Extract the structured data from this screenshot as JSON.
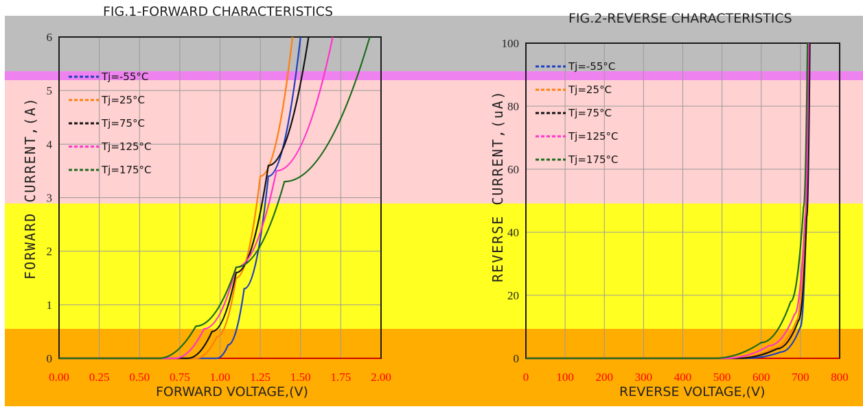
{
  "bands": {
    "gray": "#bdbdbd",
    "violet": "#ee82ee",
    "pink": "#ffd1d1",
    "yellow": "#ffff22",
    "orange": "#ffad00"
  },
  "chart_data": [
    {
      "type": "line",
      "title": "FIG.1-FORWARD CHARACTERISTICS",
      "xlabel": "FORWARD VOLTAGE,(V)",
      "ylabel": "FORWARD CURRENT,(A)",
      "xlim": [
        0,
        2
      ],
      "ylim": [
        0,
        6
      ],
      "x_ticks": [
        "0.00",
        "0.25",
        "0.50",
        "0.75",
        "1.00",
        "1.25",
        "1.50",
        "1.75",
        "2.00"
      ],
      "y_ticks": [
        "0",
        "1",
        "2",
        "3",
        "4",
        "5",
        "6"
      ],
      "grid": true,
      "legend_position": "top-left",
      "series": [
        {
          "name": "Tj=-55°C",
          "color": "#1f3fbf",
          "points": [
            [
              0,
              0
            ],
            [
              0.98,
              0
            ],
            [
              1.05,
              0.25
            ],
            [
              1.15,
              1.3
            ],
            [
              1.3,
              3.4
            ],
            [
              1.5,
              6
            ]
          ]
        },
        {
          "name": "Tj=25°C",
          "color": "#ff7f0e",
          "points": [
            [
              0,
              0
            ],
            [
              0.85,
              0
            ],
            [
              0.98,
              0.4
            ],
            [
              1.1,
              1.5
            ],
            [
              1.25,
              3.4
            ],
            [
              1.45,
              6
            ]
          ]
        },
        {
          "name": "Tj=75°C",
          "color": "#111111",
          "points": [
            [
              0,
              0
            ],
            [
              0.8,
              0
            ],
            [
              0.95,
              0.5
            ],
            [
              1.1,
              1.6
            ],
            [
              1.3,
              3.6
            ],
            [
              1.55,
              6
            ]
          ]
        },
        {
          "name": "Tj=125°C",
          "color": "#ff33cc",
          "points": [
            [
              0,
              0
            ],
            [
              0.72,
              0
            ],
            [
              0.9,
              0.55
            ],
            [
              1.1,
              1.7
            ],
            [
              1.35,
              3.5
            ],
            [
              1.7,
              6
            ]
          ]
        },
        {
          "name": "Tj=175°C",
          "color": "#1b6b1b",
          "points": [
            [
              0,
              0
            ],
            [
              0.62,
              0
            ],
            [
              0.85,
              0.6
            ],
            [
              1.1,
              1.7
            ],
            [
              1.4,
              3.3
            ],
            [
              1.93,
              6
            ]
          ]
        }
      ]
    },
    {
      "type": "line",
      "title": "FIG.2-REVERSE CHARACTERISTICS",
      "xlabel": "REVERSE VOLTAGE,(V)",
      "ylabel": "REVERSE CURRENT,(uA)",
      "xlim": [
        0,
        800
      ],
      "ylim": [
        0,
        100
      ],
      "x_ticks": [
        "0",
        "100",
        "200",
        "300",
        "400",
        "500",
        "600",
        "700",
        "800"
      ],
      "y_ticks": [
        "0",
        "20",
        "40",
        "60",
        "80",
        "100"
      ],
      "grid": true,
      "legend_position": "top-left",
      "series": [
        {
          "name": "Tj=-55°C",
          "color": "#1f3fbf",
          "points": [
            [
              0,
              0
            ],
            [
              560,
              0
            ],
            [
              650,
              2
            ],
            [
              700,
              10
            ],
            [
              715,
              45
            ],
            [
              722,
              100
            ]
          ]
        },
        {
          "name": "Tj=25°C",
          "color": "#ff7f0e",
          "points": [
            [
              0,
              0
            ],
            [
              530,
              0
            ],
            [
              630,
              3
            ],
            [
              690,
              12
            ],
            [
              712,
              45
            ],
            [
              720,
              100
            ]
          ]
        },
        {
          "name": "Tj=75°C",
          "color": "#111111",
          "points": [
            [
              0,
              0
            ],
            [
              540,
              0
            ],
            [
              640,
              3
            ],
            [
              695,
              12
            ],
            [
              716,
              45
            ],
            [
              724,
              100
            ]
          ]
        },
        {
          "name": "Tj=125°C",
          "color": "#ff33cc",
          "points": [
            [
              0,
              0
            ],
            [
              510,
              0
            ],
            [
              620,
              4
            ],
            [
              685,
              14
            ],
            [
              712,
              45
            ],
            [
              721,
              100
            ]
          ]
        },
        {
          "name": "Tj=175°C",
          "color": "#1b6b1b",
          "points": [
            [
              0,
              0
            ],
            [
              480,
              0
            ],
            [
              600,
              5
            ],
            [
              675,
              18
            ],
            [
              708,
              48
            ],
            [
              718,
              100
            ]
          ]
        }
      ]
    }
  ]
}
